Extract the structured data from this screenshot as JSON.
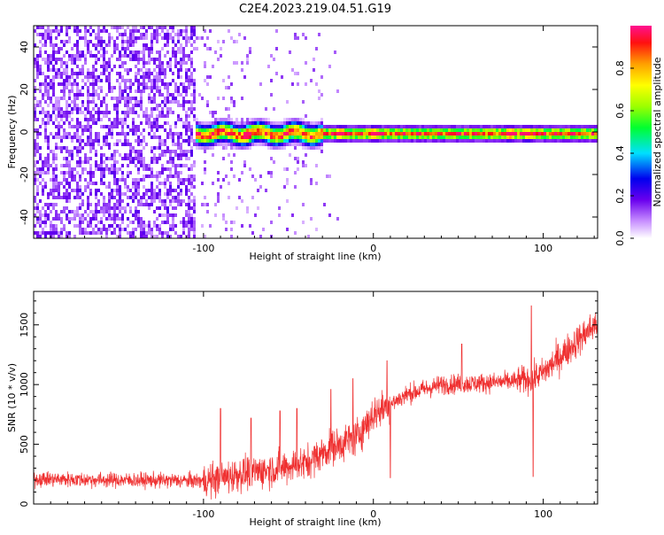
{
  "title": "C2E4.2023.219.04.51.G19",
  "chart_data": [
    {
      "type": "heatmap",
      "xlabel": "Height of straight line (km)",
      "ylabel": "Frequency (Hz)",
      "xlim": [
        -200,
        132
      ],
      "ylim": [
        -50,
        50
      ],
      "x_ticks": [
        -100,
        0,
        100
      ],
      "y_ticks": [
        -40,
        -20,
        0,
        20,
        40
      ],
      "colorbar": {
        "label": "Normalized spectral amplitude",
        "range": [
          0,
          1
        ],
        "ticks": [
          "0.0",
          "0.2",
          "0.4",
          "0.6",
          "0.8"
        ]
      },
      "signal_band": {
        "x_start": -106,
        "x_end": 132,
        "center_frequency": 0,
        "strong_peaks_x": [
          -75,
          -20,
          0,
          80,
          90
        ]
      },
      "noise_region_x": [
        -200,
        -20
      ]
    },
    {
      "type": "line",
      "xlabel": "Height of straight line (km)",
      "ylabel": "SNR (10 * v/v)",
      "xlim": [
        -200,
        132
      ],
      "ylim": [
        0,
        1780
      ],
      "x_ticks": [
        -100,
        0,
        100
      ],
      "y_ticks": [
        0,
        500,
        1000,
        1500
      ],
      "color": "#ef3030",
      "trend": {
        "x": [
          -200,
          -150,
          -100,
          -90,
          -80,
          -60,
          -40,
          -25,
          -10,
          0,
          20,
          40,
          60,
          85,
          93,
          100,
          115,
          132
        ],
        "y": [
          210,
          200,
          195,
          210,
          250,
          290,
          340,
          470,
          560,
          750,
          920,
          1000,
          1010,
          1030,
          1050,
          1100,
          1300,
          1520
        ]
      },
      "spikes": [
        {
          "x": -90,
          "y": 800
        },
        {
          "x": -72,
          "y": 720
        },
        {
          "x": -55,
          "y": 780
        },
        {
          "x": -45,
          "y": 800
        },
        {
          "x": -25,
          "y": 960
        },
        {
          "x": -12,
          "y": 1050
        },
        {
          "x": 8,
          "y": 1200
        },
        {
          "x": 10,
          "y": 220
        },
        {
          "x": 52,
          "y": 1340
        },
        {
          "x": 93,
          "y": 1660
        },
        {
          "x": 94,
          "y": 230
        }
      ]
    }
  ]
}
